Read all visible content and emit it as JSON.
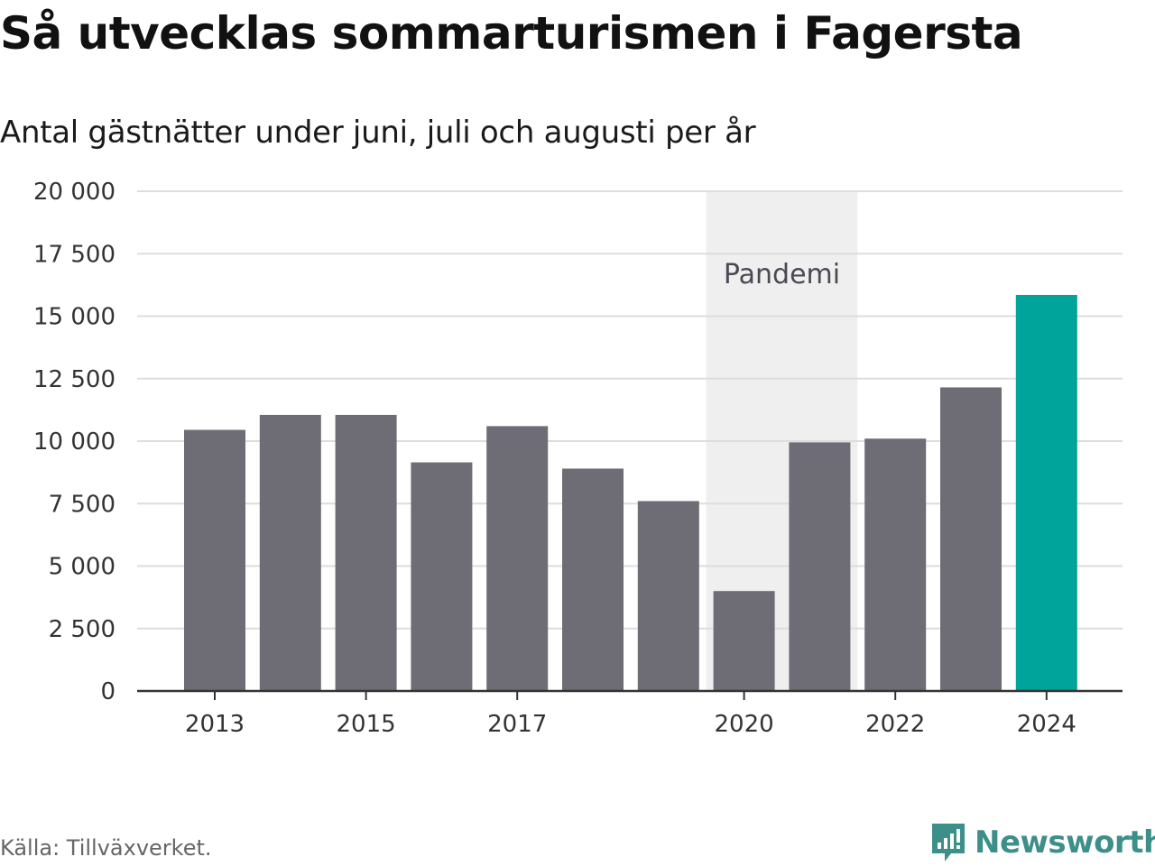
{
  "title": "Så utvecklas sommarturismen i Fagersta",
  "subtitle": "Antal gästnätter under juni, juli och augusti per år",
  "source": "Källa: Tillväxverket.",
  "brand": "Newsworthy",
  "colors": {
    "bar": "#6e6d75",
    "highlight": "#00a49a",
    "band": "#efefef",
    "brand": "#3d8f8a"
  },
  "chart_data": {
    "type": "bar",
    "title": "Så utvecklas sommarturismen i Fagersta",
    "subtitle": "Antal gästnätter under juni, juli och augusti per år",
    "categories": [
      "2013",
      "2014",
      "2015",
      "2016",
      "2017",
      "2018",
      "2019",
      "2020",
      "2021",
      "2022",
      "2023",
      "2024"
    ],
    "values": [
      10450,
      11050,
      11050,
      9150,
      10600,
      8900,
      7600,
      4000,
      9950,
      10100,
      12150,
      15850
    ],
    "highlight_category": "2024",
    "x_tick_labels": [
      "2013",
      "2015",
      "2017",
      "2020",
      "2022",
      "2024"
    ],
    "y_ticks": [
      0,
      2500,
      5000,
      7500,
      10000,
      12500,
      15000,
      17500,
      20000
    ],
    "y_tick_labels": [
      "0",
      "2 500",
      "5 000",
      "7 500",
      "10 000",
      "12 500",
      "15 000",
      "17 500",
      "20 000"
    ],
    "ylim": [
      0,
      20000
    ],
    "xlabel": "",
    "ylabel": "",
    "grid": true,
    "annotation": {
      "label": "Pandemi",
      "from": "2020",
      "to": "2021"
    }
  }
}
